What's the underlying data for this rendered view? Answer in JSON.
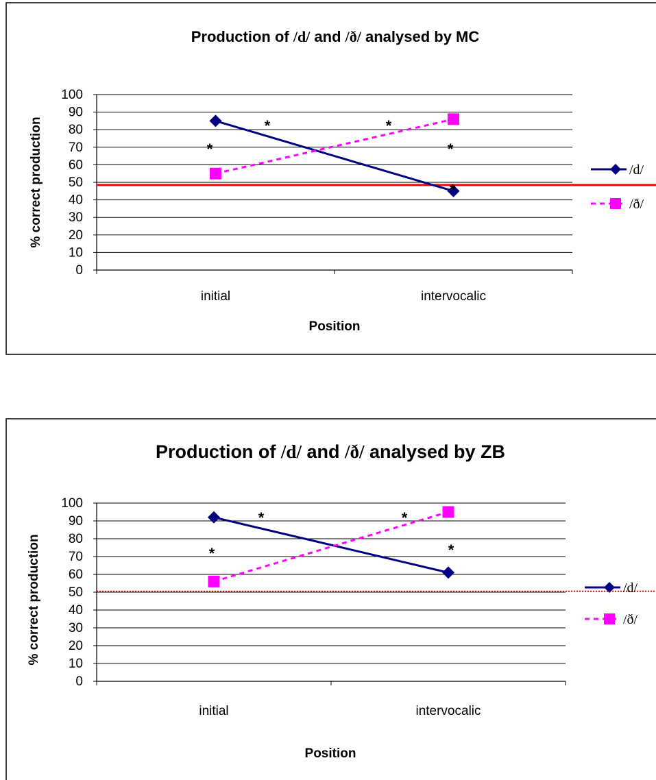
{
  "chart_data": [
    {
      "type": "line",
      "title_prefix": "Production of ",
      "title_sym1": "/d/",
      "title_mid": " and ",
      "title_sym2": "/ð/",
      "title_suffix": " analysed by MC",
      "xlabel": "Position",
      "ylabel": "% correct production",
      "categories": [
        "initial",
        "intervocalic"
      ],
      "ylim": [
        0,
        100
      ],
      "ytick_step": 10,
      "grid": true,
      "legend": "right",
      "series": [
        {
          "name": "/d/",
          "values": [
            85,
            45
          ],
          "color": "#000080",
          "marker": "diamond",
          "dash": "solid"
        },
        {
          "name": "/ð/",
          "values": [
            55,
            86
          ],
          "color": "#ff00ff",
          "marker": "square",
          "dash": "dashed"
        }
      ],
      "reference_line": {
        "value": 48.5,
        "color": "#ff0000",
        "style": "solid"
      },
      "annotations": [
        "*",
        "*",
        "*",
        "*",
        "*"
      ]
    },
    {
      "type": "line",
      "title_prefix": "Production of ",
      "title_sym1": "/d/",
      "title_mid": " and ",
      "title_sym2": "/ð/",
      "title_suffix": " analysed by ZB",
      "xlabel": "Position",
      "ylabel": "% correct production",
      "categories": [
        "initial",
        "intervocalic"
      ],
      "ylim": [
        0,
        100
      ],
      "ytick_step": 10,
      "grid": true,
      "legend": "right",
      "series": [
        {
          "name": "/d/",
          "values": [
            92,
            61
          ],
          "color": "#000080",
          "marker": "diamond",
          "dash": "solid"
        },
        {
          "name": "/ð/",
          "values": [
            56,
            95
          ],
          "color": "#ff00ff",
          "marker": "square",
          "dash": "dashed"
        }
      ],
      "reference_line": {
        "value": 50.5,
        "color": "#ff0000",
        "style": "dotted"
      },
      "annotations": [
        "*",
        "*",
        "*",
        "*"
      ]
    }
  ]
}
